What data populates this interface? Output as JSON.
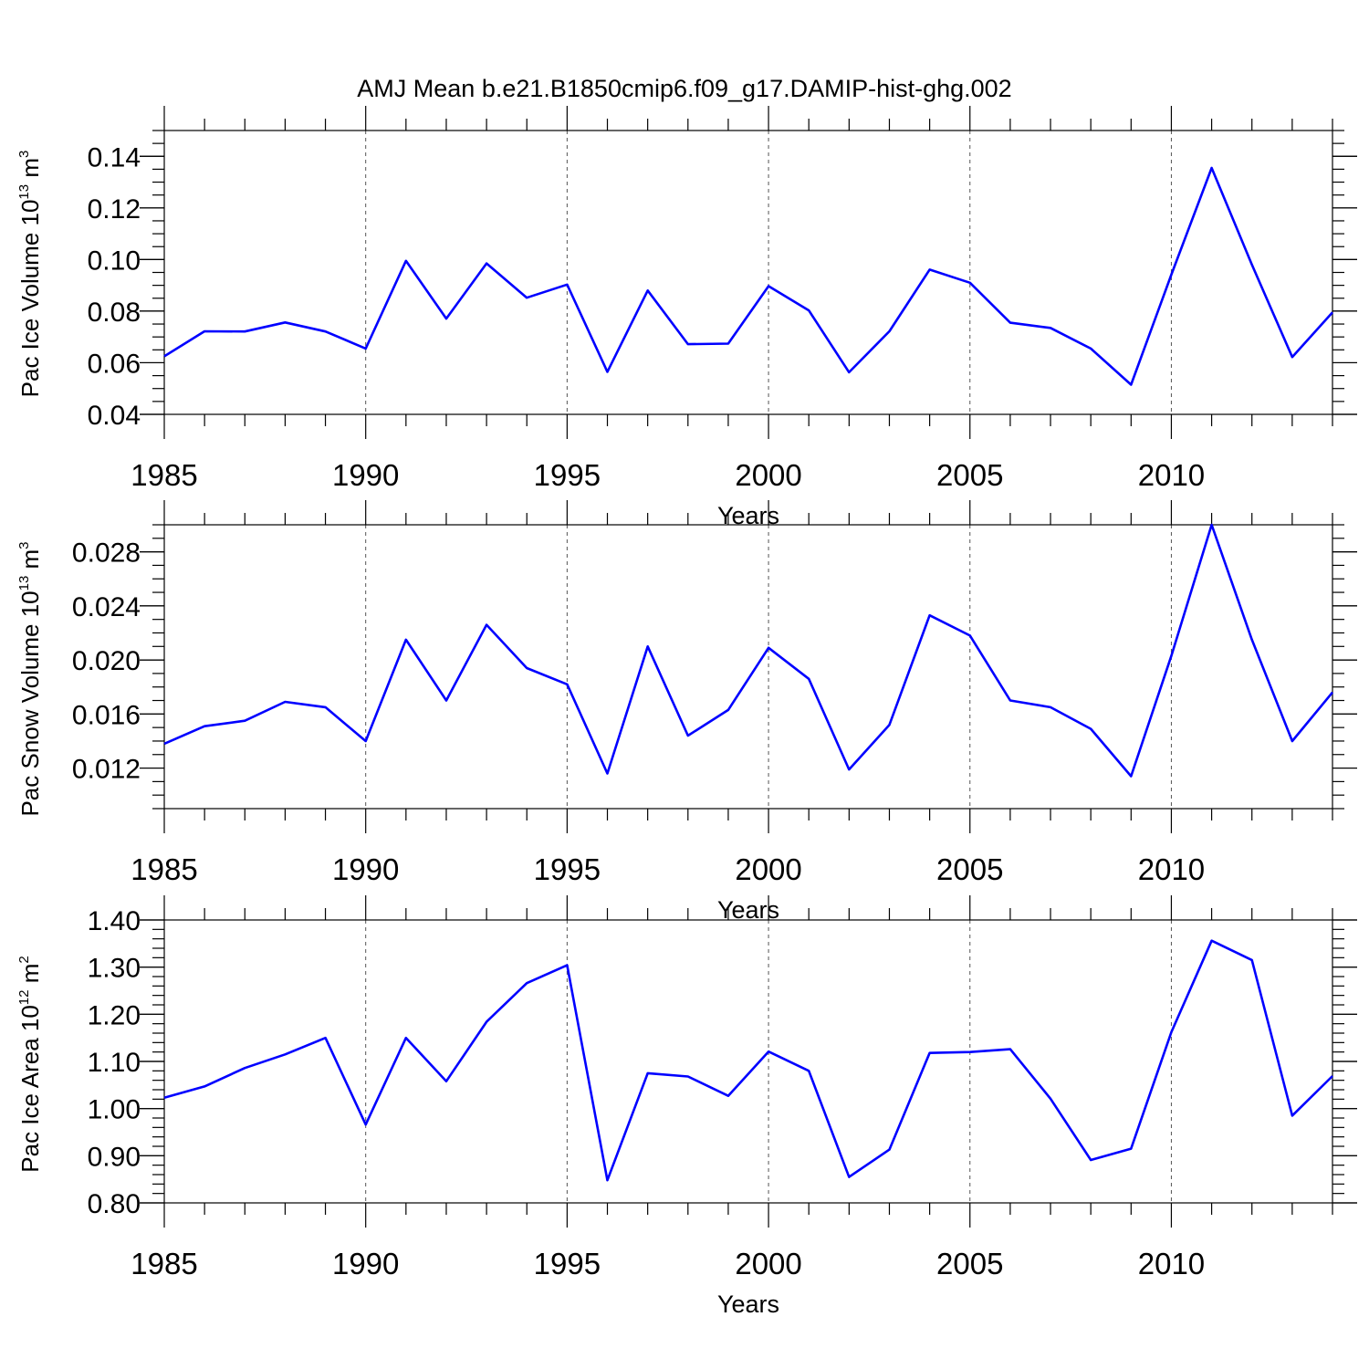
{
  "figure": {
    "title": "AMJ Mean b.e21.B1850cmip6.f09_g17.DAMIP-hist-ghg.002",
    "line_color": "#0000ff"
  },
  "chart_data": [
    {
      "type": "line",
      "xlabel": "Years",
      "ylabel": {
        "main": "Pac Ice Volume 10",
        "exp": "13",
        "unit": " m",
        "unit_exp": "3"
      },
      "xlim": [
        1985,
        2014
      ],
      "ylim": [
        0.04,
        0.15
      ],
      "xticks": [
        1985,
        1990,
        1995,
        2000,
        2005,
        2010
      ],
      "xtick_labels": [
        "1985",
        "1990",
        "1995",
        "2000",
        "2005",
        "2010"
      ],
      "yticks": [
        0.04,
        0.06,
        0.08,
        0.1,
        0.12,
        0.14
      ],
      "ytick_labels": [
        "0.04",
        "0.06",
        "0.08",
        "0.10",
        "0.12",
        "0.14"
      ],
      "minor_step": 0.005,
      "x": [
        1985,
        1986,
        1987,
        1988,
        1989,
        1990,
        1991,
        1992,
        1993,
        1994,
        1995,
        1996,
        1997,
        1998,
        1999,
        2000,
        2001,
        2002,
        2003,
        2004,
        2005,
        2006,
        2007,
        2008,
        2009,
        2010,
        2011,
        2012,
        2013,
        2014
      ],
      "values": [
        0.0625,
        0.0722,
        0.0721,
        0.0756,
        0.0721,
        0.0655,
        0.0995,
        0.0771,
        0.0985,
        0.0852,
        0.0903,
        0.0565,
        0.088,
        0.0672,
        0.0674,
        0.0897,
        0.0803,
        0.0563,
        0.0722,
        0.0961,
        0.091,
        0.0755,
        0.0735,
        0.0655,
        0.0515,
        0.0941,
        0.1355,
        0.098,
        0.0622,
        0.0795
      ],
      "grid": "dashed vertical at major x ticks"
    },
    {
      "type": "line",
      "xlabel": "Years",
      "ylabel": {
        "main": "Pac Snow Volume 10",
        "exp": "13",
        "unit": " m",
        "unit_exp": "3"
      },
      "xlim": [
        1985,
        2014
      ],
      "ylim": [
        0.009,
        0.03
      ],
      "xticks": [
        1985,
        1990,
        1995,
        2000,
        2005,
        2010
      ],
      "xtick_labels": [
        "1985",
        "1990",
        "1995",
        "2000",
        "2005",
        "2010"
      ],
      "yticks": [
        0.012,
        0.016,
        0.02,
        0.024,
        0.028
      ],
      "ytick_labels": [
        "0.012",
        "0.016",
        "0.020",
        "0.024",
        "0.028"
      ],
      "minor_step": 0.001,
      "x": [
        1985,
        1986,
        1987,
        1988,
        1989,
        1990,
        1991,
        1992,
        1993,
        1994,
        1995,
        1996,
        1997,
        1998,
        1999,
        2000,
        2001,
        2002,
        2003,
        2004,
        2005,
        2006,
        2007,
        2008,
        2009,
        2010,
        2011,
        2012,
        2013,
        2014
      ],
      "values": [
        0.0138,
        0.0151,
        0.0155,
        0.0169,
        0.0165,
        0.014,
        0.0215,
        0.017,
        0.0226,
        0.0194,
        0.0182,
        0.0116,
        0.021,
        0.0144,
        0.0163,
        0.0209,
        0.0186,
        0.0119,
        0.0152,
        0.0233,
        0.0218,
        0.017,
        0.0165,
        0.0149,
        0.0114,
        0.0203,
        0.03,
        0.0215,
        0.014,
        0.0176
      ],
      "grid": "dashed vertical at major x ticks"
    },
    {
      "type": "line",
      "xlabel": "Years",
      "ylabel": {
        "main": "Pac Ice Area 10",
        "exp": "12",
        "unit": " m",
        "unit_exp": "2"
      },
      "xlim": [
        1985,
        2014
      ],
      "ylim": [
        0.8,
        1.4
      ],
      "xticks": [
        1985,
        1990,
        1995,
        2000,
        2005,
        2010
      ],
      "xtick_labels": [
        "1985",
        "1990",
        "1995",
        "2000",
        "2005",
        "2010"
      ],
      "yticks": [
        0.8,
        0.9,
        1.0,
        1.1,
        1.2,
        1.3,
        1.4
      ],
      "ytick_labels": [
        "0.80",
        "0.90",
        "1.00",
        "1.10",
        "1.20",
        "1.30",
        "1.40"
      ],
      "minor_step": 0.02,
      "x": [
        1985,
        1986,
        1987,
        1988,
        1989,
        1990,
        1991,
        1992,
        1993,
        1994,
        1995,
        1996,
        1997,
        1998,
        1999,
        2000,
        2001,
        2002,
        2003,
        2004,
        2005,
        2006,
        2007,
        2008,
        2009,
        2010,
        2011,
        2012,
        2013,
        2014
      ],
      "values": [
        1.023,
        1.047,
        1.086,
        1.115,
        1.15,
        0.966,
        1.15,
        1.058,
        1.184,
        1.266,
        1.304,
        0.848,
        1.075,
        1.068,
        1.027,
        1.121,
        1.08,
        0.855,
        0.913,
        1.118,
        1.12,
        1.126,
        1.021,
        0.891,
        0.915,
        1.162,
        1.356,
        1.315,
        0.985,
        1.069
      ],
      "grid": "dashed vertical at major x ticks"
    }
  ]
}
